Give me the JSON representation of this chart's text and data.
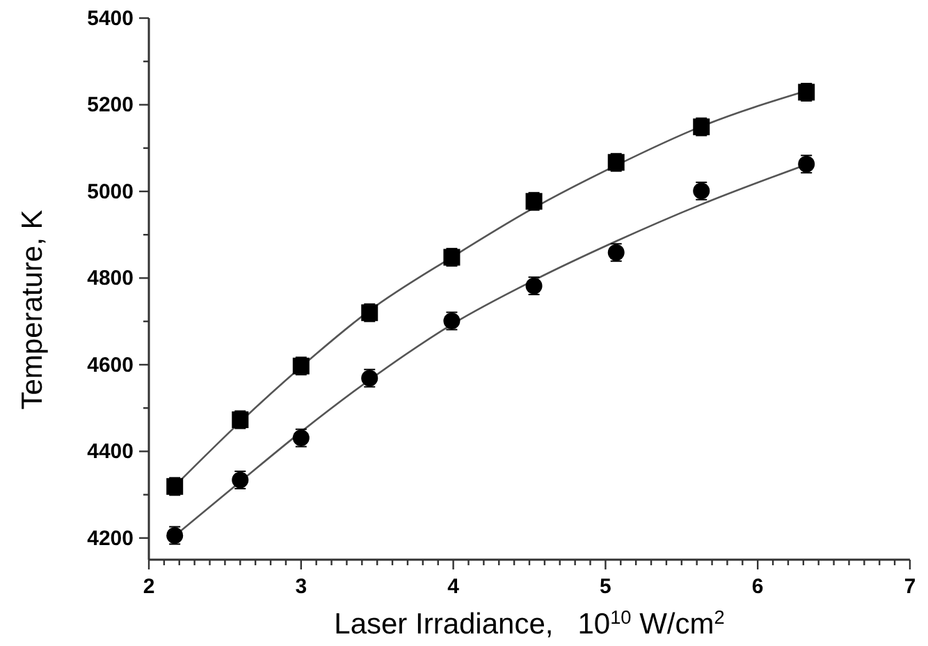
{
  "chart_data": {
    "type": "scatter",
    "xlabel": "Laser Irradiance,   10$^{10}$ W/cm$^{2}$",
    "ylabel": "Temperature, K",
    "xlim": [
      2,
      7
    ],
    "ylim": [
      4150,
      5400
    ],
    "xticks": [
      2,
      {
        "value": 2.1,
        "label": null
      },
      {
        "value": 2.2,
        "label": null
      },
      {
        "value": 2.3,
        "label": null
      },
      {
        "value": 2.4,
        "label": null
      },
      {
        "value": 2.5,
        "label": null
      },
      {
        "value": 2.6,
        "label": null
      },
      {
        "value": 2.7,
        "label": null
      },
      {
        "value": 2.8,
        "label": null
      },
      {
        "value": 2.9,
        "label": null
      },
      3,
      {
        "value": 3.1,
        "label": null
      },
      {
        "value": 3.2,
        "label": null
      },
      {
        "value": 3.3,
        "label": null
      },
      {
        "value": 3.4,
        "label": null
      },
      {
        "value": 3.5,
        "label": null
      },
      {
        "value": 3.6,
        "label": null
      },
      {
        "value": 3.7,
        "label": null
      },
      {
        "value": 3.8,
        "label": null
      },
      {
        "value": 3.9,
        "label": null
      },
      4,
      {
        "value": 4.1,
        "label": null
      },
      {
        "value": 4.2,
        "label": null
      },
      {
        "value": 4.3,
        "label": null
      },
      {
        "value": 4.4,
        "label": null
      },
      {
        "value": 4.5,
        "label": null
      },
      {
        "value": 4.6,
        "label": null
      },
      {
        "value": 4.7,
        "label": null
      },
      {
        "value": 4.8,
        "label": null
      },
      {
        "value": 4.9,
        "label": null
      },
      5,
      {
        "value": 5.1,
        "label": null
      },
      {
        "value": 5.2,
        "label": null
      },
      {
        "value": 5.3,
        "label": null
      },
      {
        "value": 5.4,
        "label": null
      },
      {
        "value": 5.5,
        "label": null
      },
      {
        "value": 5.6,
        "label": null
      },
      {
        "value": 5.7,
        "label": null
      },
      {
        "value": 5.8,
        "label": null
      },
      {
        "value": 5.9,
        "label": null
      },
      6,
      {
        "value": 6.1,
        "label": null
      },
      {
        "value": 6.2,
        "label": null
      },
      {
        "value": 6.3,
        "label": null
      },
      {
        "value": 6.4,
        "label": null
      },
      {
        "value": 6.5,
        "label": null
      },
      {
        "value": 6.6,
        "label": null
      },
      {
        "value": 6.7,
        "label": null
      },
      {
        "value": 6.8,
        "label": null
      },
      {
        "value": 6.9,
        "label": null
      },
      7
    ],
    "yticks": [
      4200,
      {
        "value": 4300,
        "label": null
      },
      4400,
      {
        "value": 4500,
        "label": null
      },
      4600,
      {
        "value": 4700,
        "label": null
      },
      4800,
      {
        "value": 4900,
        "label": null
      },
      5000,
      {
        "value": 5100,
        "label": null
      },
      5200,
      {
        "value": 5300,
        "label": null
      },
      5400
    ],
    "grid": false,
    "series": [
      {
        "type": "line",
        "color": "#555555",
        "marker": "none",
        "line_style": "solid",
        "x": [
          2.17,
          2.6,
          3.0,
          3.45,
          4.0,
          4.53,
          5.07,
          5.63,
          6.32
        ],
        "values": [
          4320,
          4468,
          4595,
          4725,
          4850,
          4962,
          5060,
          5150,
          5232
        ]
      },
      {
        "type": "line",
        "color": "#555555",
        "marker": "none",
        "line_style": "solid",
        "x": [
          2.17,
          2.6,
          3.0,
          3.45,
          4.0,
          4.53,
          5.07,
          5.63,
          6.32
        ],
        "values": [
          4205,
          4330,
          4445,
          4565,
          4695,
          4795,
          4885,
          4970,
          5062
        ]
      },
      {
        "color": "#000000",
        "marker": "square",
        "x": [
          2.17,
          2.6,
          3.0,
          3.45,
          3.99,
          4.53,
          5.07,
          5.63,
          6.32
        ],
        "values": [
          4319,
          4473,
          4597,
          4720,
          4848,
          4977,
          5067,
          5149,
          5229
        ],
        "errors": [
          20,
          20,
          20,
          20,
          20,
          20,
          20,
          20,
          20
        ]
      },
      {
        "color": "#000000",
        "marker": "circle",
        "x": [
          2.17,
          2.6,
          3.0,
          3.45,
          3.99,
          4.53,
          5.07,
          5.63,
          6.32
        ],
        "values": [
          4206,
          4334,
          4431,
          4569,
          4701,
          4782,
          4859,
          5001,
          5063
        ],
        "errors": [
          20,
          20,
          20,
          20,
          20,
          20,
          20,
          20,
          20
        ]
      }
    ]
  }
}
